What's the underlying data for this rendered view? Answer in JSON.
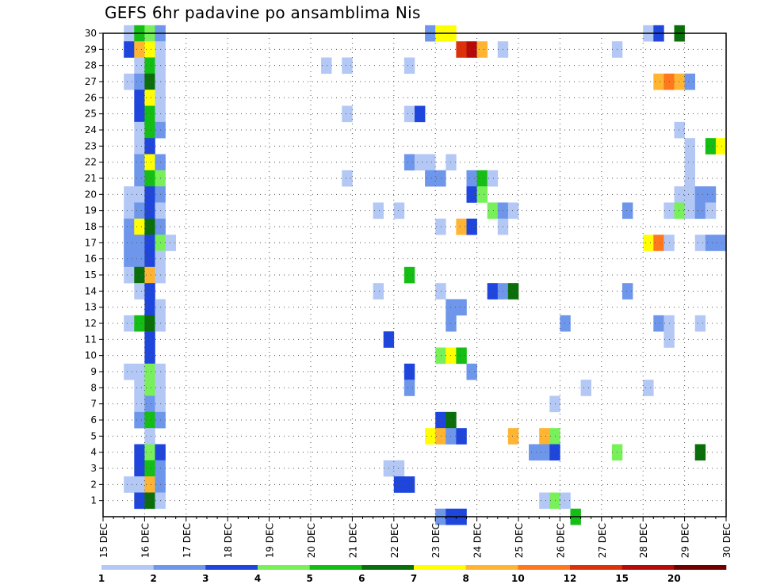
{
  "chart_data": {
    "type": "heatmap",
    "title": "GEFS 6hr padavine po ansamblima Nis",
    "xlabel": "",
    "ylabel": "",
    "x_ticks": [
      "15 DEC",
      "16 DEC",
      "17 DEC",
      "18 DEC",
      "19 DEC",
      "20 DEC",
      "21 DEC",
      "22 DEC",
      "23 DEC",
      "24 DEC",
      "25 DEC",
      "26 DEC",
      "27 DEC",
      "28 DEC",
      "29 DEC",
      "30 DEC"
    ],
    "y_ticks": [
      1,
      2,
      3,
      4,
      5,
      6,
      7,
      8,
      9,
      10,
      11,
      12,
      13,
      14,
      15,
      16,
      17,
      18,
      19,
      20,
      21,
      22,
      23,
      24,
      25,
      26,
      27,
      28,
      29,
      30
    ],
    "x_range": [
      "15 DEC",
      "30 DEC"
    ],
    "y_range": [
      0,
      30
    ],
    "time_step_hours": 6,
    "grid": true,
    "colorbar": {
      "placement": "bottom",
      "labels": [
        "1",
        "2",
        "3",
        "4",
        "5",
        "6",
        "7",
        "8",
        "10",
        "12",
        "15",
        "20"
      ],
      "colors": [
        "#b4c8f5",
        "#6e96eb",
        "#1e46dc",
        "#78f05a",
        "#14be14",
        "#0a6e0a",
        "#ffff00",
        "#ffb432",
        "#ff781e",
        "#dc320a",
        "#b40a0a",
        "#6e0000"
      ]
    },
    "cells": [
      {
        "day": 15.5,
        "member": 30,
        "level": 1
      },
      {
        "day": 15.75,
        "member": 30,
        "level": 5
      },
      {
        "day": 16,
        "member": 30,
        "level": 4
      },
      {
        "day": 16.25,
        "member": 30,
        "level": 2
      },
      {
        "day": 15.5,
        "member": 29,
        "level": 3
      },
      {
        "day": 15.75,
        "member": 29,
        "level": 8
      },
      {
        "day": 16,
        "member": 29,
        "level": 7
      },
      {
        "day": 16.25,
        "member": 29,
        "level": 1
      },
      {
        "day": 15.75,
        "member": 28,
        "level": 1
      },
      {
        "day": 16,
        "member": 28,
        "level": 5
      },
      {
        "day": 16.25,
        "member": 28,
        "level": 1
      },
      {
        "day": 15.5,
        "member": 27,
        "level": 1
      },
      {
        "day": 15.75,
        "member": 27,
        "level": 2
      },
      {
        "day": 16,
        "member": 27,
        "level": 6
      },
      {
        "day": 16.25,
        "member": 27,
        "level": 1
      },
      {
        "day": 15.75,
        "member": 26,
        "level": 3
      },
      {
        "day": 16,
        "member": 26,
        "level": 7
      },
      {
        "day": 16.25,
        "member": 26,
        "level": 1
      },
      {
        "day": 15.75,
        "member": 25,
        "level": 3
      },
      {
        "day": 16,
        "member": 25,
        "level": 5
      },
      {
        "day": 16.25,
        "member": 25,
        "level": 1
      },
      {
        "day": 15.75,
        "member": 24,
        "level": 1
      },
      {
        "day": 16,
        "member": 24,
        "level": 5
      },
      {
        "day": 16.25,
        "member": 24,
        "level": 2
      },
      {
        "day": 15.75,
        "member": 23,
        "level": 1
      },
      {
        "day": 16,
        "member": 23,
        "level": 3
      },
      {
        "day": 15.75,
        "member": 22,
        "level": 2
      },
      {
        "day": 16,
        "member": 22,
        "level": 7
      },
      {
        "day": 16.25,
        "member": 22,
        "level": 2
      },
      {
        "day": 15.75,
        "member": 21,
        "level": 2
      },
      {
        "day": 16,
        "member": 21,
        "level": 5
      },
      {
        "day": 16.25,
        "member": 21,
        "level": 4
      },
      {
        "day": 15.5,
        "member": 20,
        "level": 1
      },
      {
        "day": 15.75,
        "member": 20,
        "level": 1
      },
      {
        "day": 16,
        "member": 20,
        "level": 3
      },
      {
        "day": 16.25,
        "member": 20,
        "level": 2
      },
      {
        "day": 15.5,
        "member": 19,
        "level": 1
      },
      {
        "day": 15.75,
        "member": 19,
        "level": 2
      },
      {
        "day": 16,
        "member": 19,
        "level": 3
      },
      {
        "day": 16.25,
        "member": 19,
        "level": 1
      },
      {
        "day": 15.5,
        "member": 18,
        "level": 2
      },
      {
        "day": 15.75,
        "member": 18,
        "level": 7
      },
      {
        "day": 16,
        "member": 18,
        "level": 6
      },
      {
        "day": 16.25,
        "member": 18,
        "level": 2
      },
      {
        "day": 15.5,
        "member": 17,
        "level": 2
      },
      {
        "day": 15.75,
        "member": 17,
        "level": 2
      },
      {
        "day": 16,
        "member": 17,
        "level": 3
      },
      {
        "day": 16.25,
        "member": 17,
        "level": 4
      },
      {
        "day": 16.5,
        "member": 17,
        "level": 1
      },
      {
        "day": 15.5,
        "member": 16,
        "level": 2
      },
      {
        "day": 15.75,
        "member": 16,
        "level": 2
      },
      {
        "day": 16,
        "member": 16,
        "level": 3
      },
      {
        "day": 16.25,
        "member": 16,
        "level": 1
      },
      {
        "day": 15.5,
        "member": 15,
        "level": 1
      },
      {
        "day": 15.75,
        "member": 15,
        "level": 6
      },
      {
        "day": 16,
        "member": 15,
        "level": 8
      },
      {
        "day": 16.25,
        "member": 15,
        "level": 1
      },
      {
        "day": 15.75,
        "member": 14,
        "level": 1
      },
      {
        "day": 16,
        "member": 14,
        "level": 3
      },
      {
        "day": 16,
        "member": 13,
        "level": 3
      },
      {
        "day": 16.25,
        "member": 13,
        "level": 1
      },
      {
        "day": 15.5,
        "member": 12,
        "level": 1
      },
      {
        "day": 15.75,
        "member": 12,
        "level": 5
      },
      {
        "day": 16,
        "member": 12,
        "level": 6
      },
      {
        "day": 16.25,
        "member": 12,
        "level": 1
      },
      {
        "day": 16,
        "member": 11,
        "level": 3
      },
      {
        "day": 16,
        "member": 10,
        "level": 3
      },
      {
        "day": 15.5,
        "member": 9,
        "level": 1
      },
      {
        "day": 15.75,
        "member": 9,
        "level": 1
      },
      {
        "day": 16,
        "member": 9,
        "level": 4
      },
      {
        "day": 16.25,
        "member": 9,
        "level": 1
      },
      {
        "day": 15.75,
        "member": 8,
        "level": 1
      },
      {
        "day": 16,
        "member": 8,
        "level": 4
      },
      {
        "day": 16.25,
        "member": 8,
        "level": 1
      },
      {
        "day": 15.75,
        "member": 7,
        "level": 1
      },
      {
        "day": 16,
        "member": 7,
        "level": 2
      },
      {
        "day": 16.25,
        "member": 7,
        "level": 1
      },
      {
        "day": 15.75,
        "member": 6,
        "level": 2
      },
      {
        "day": 16,
        "member": 6,
        "level": 5
      },
      {
        "day": 16.25,
        "member": 6,
        "level": 2
      },
      {
        "day": 16,
        "member": 5,
        "level": 1
      },
      {
        "day": 15.75,
        "member": 4,
        "level": 3
      },
      {
        "day": 16,
        "member": 4,
        "level": 4
      },
      {
        "day": 16.25,
        "member": 4,
        "level": 3
      },
      {
        "day": 15.75,
        "member": 3,
        "level": 3
      },
      {
        "day": 16,
        "member": 3,
        "level": 5
      },
      {
        "day": 16.25,
        "member": 3,
        "level": 2
      },
      {
        "day": 15.5,
        "member": 2,
        "level": 1
      },
      {
        "day": 15.75,
        "member": 2,
        "level": 1
      },
      {
        "day": 16,
        "member": 2,
        "level": 8
      },
      {
        "day": 16.25,
        "member": 2,
        "level": 2
      },
      {
        "day": 15.75,
        "member": 1,
        "level": 3
      },
      {
        "day": 16,
        "member": 1,
        "level": 6
      },
      {
        "day": 16.25,
        "member": 1,
        "level": 1
      },
      {
        "day": 20.25,
        "member": 28,
        "level": 1
      },
      {
        "day": 20.75,
        "member": 28,
        "level": 1
      },
      {
        "day": 20.75,
        "member": 25,
        "level": 1
      },
      {
        "day": 20.75,
        "member": 21,
        "level": 1
      },
      {
        "day": 21.5,
        "member": 19,
        "level": 1
      },
      {
        "day": 21.5,
        "member": 14,
        "level": 1
      },
      {
        "day": 22,
        "member": 19,
        "level": 1
      },
      {
        "day": 21.75,
        "member": 11,
        "level": 3
      },
      {
        "day": 21.75,
        "member": 3,
        "level": 1
      },
      {
        "day": 22,
        "member": 3,
        "level": 1
      },
      {
        "day": 22,
        "member": 2,
        "level": 3
      },
      {
        "day": 22.25,
        "member": 2,
        "level": 3
      },
      {
        "day": 22.25,
        "member": 28,
        "level": 1
      },
      {
        "day": 22.25,
        "member": 25,
        "level": 1
      },
      {
        "day": 22.5,
        "member": 25,
        "level": 3
      },
      {
        "day": 22.25,
        "member": 22,
        "level": 2
      },
      {
        "day": 22.5,
        "member": 22,
        "level": 1
      },
      {
        "day": 22.75,
        "member": 22,
        "level": 1
      },
      {
        "day": 23.25,
        "member": 22,
        "level": 1
      },
      {
        "day": 22.75,
        "member": 21,
        "level": 2
      },
      {
        "day": 23,
        "member": 21,
        "level": 2
      },
      {
        "day": 22.25,
        "member": 15,
        "level": 5
      },
      {
        "day": 22.25,
        "member": 9,
        "level": 3
      },
      {
        "day": 22.25,
        "member": 8,
        "level": 2
      },
      {
        "day": 22.75,
        "member": 30,
        "level": 2
      },
      {
        "day": 23,
        "member": 30,
        "level": 7
      },
      {
        "day": 23.25,
        "member": 30,
        "level": 7
      },
      {
        "day": 23.5,
        "member": 29,
        "level": 10
      },
      {
        "day": 23.75,
        "member": 29,
        "level": 11
      },
      {
        "day": 24,
        "member": 29,
        "level": 8
      },
      {
        "day": 24.5,
        "member": 29,
        "level": 1
      },
      {
        "day": 23,
        "member": 18,
        "level": 1
      },
      {
        "day": 23.5,
        "member": 18,
        "level": 8
      },
      {
        "day": 23.75,
        "member": 18,
        "level": 3
      },
      {
        "day": 23,
        "member": 14,
        "level": 1
      },
      {
        "day": 23.25,
        "member": 13,
        "level": 2
      },
      {
        "day": 23.5,
        "member": 13,
        "level": 2
      },
      {
        "day": 23.25,
        "member": 12,
        "level": 2
      },
      {
        "day": 23,
        "member": 10,
        "level": 4
      },
      {
        "day": 23.25,
        "member": 10,
        "level": 7
      },
      {
        "day": 23.5,
        "member": 10,
        "level": 5
      },
      {
        "day": 23,
        "member": 6,
        "level": 3
      },
      {
        "day": 23.25,
        "member": 6,
        "level": 6
      },
      {
        "day": 22.75,
        "member": 5,
        "level": 7
      },
      {
        "day": 23,
        "member": 5,
        "level": 8
      },
      {
        "day": 23.25,
        "member": 5,
        "level": 2
      },
      {
        "day": 23.5,
        "member": 5,
        "level": 3
      },
      {
        "day": 23,
        "member": 0,
        "level": 2
      },
      {
        "day": 23.25,
        "member": 0,
        "level": 3
      },
      {
        "day": 23.5,
        "member": 0,
        "level": 3
      },
      {
        "day": 23.75,
        "member": 21,
        "level": 2
      },
      {
        "day": 24,
        "member": 21,
        "level": 5
      },
      {
        "day": 24.25,
        "member": 21,
        "level": 1
      },
      {
        "day": 23.75,
        "member": 20,
        "level": 3
      },
      {
        "day": 24,
        "member": 20,
        "level": 4
      },
      {
        "day": 24.25,
        "member": 19,
        "level": 4
      },
      {
        "day": 24.5,
        "member": 19,
        "level": 2
      },
      {
        "day": 24.75,
        "member": 19,
        "level": 1
      },
      {
        "day": 24.5,
        "member": 18,
        "level": 1
      },
      {
        "day": 24.25,
        "member": 14,
        "level": 3
      },
      {
        "day": 24.5,
        "member": 14,
        "level": 2
      },
      {
        "day": 24.75,
        "member": 14,
        "level": 6
      },
      {
        "day": 23.75,
        "member": 9,
        "level": 2
      },
      {
        "day": 24.75,
        "member": 5,
        "level": 8
      },
      {
        "day": 25.5,
        "member": 5,
        "level": 8
      },
      {
        "day": 25.75,
        "member": 5,
        "level": 4
      },
      {
        "day": 25.25,
        "member": 4,
        "level": 2
      },
      {
        "day": 25.5,
        "member": 4,
        "level": 2
      },
      {
        "day": 25.75,
        "member": 4,
        "level": 3
      },
      {
        "day": 25.5,
        "member": 1,
        "level": 1
      },
      {
        "day": 25.75,
        "member": 1,
        "level": 4
      },
      {
        "day": 26,
        "member": 1,
        "level": 1
      },
      {
        "day": 26.25,
        "member": 0,
        "level": 5
      },
      {
        "day": 25.75,
        "member": 7,
        "level": 1
      },
      {
        "day": 26.5,
        "member": 8,
        "level": 1
      },
      {
        "day": 26,
        "member": 12,
        "level": 2
      },
      {
        "day": 27.25,
        "member": 29,
        "level": 1
      },
      {
        "day": 27.5,
        "member": 19,
        "level": 2
      },
      {
        "day": 27.5,
        "member": 14,
        "level": 2
      },
      {
        "day": 27.25,
        "member": 4,
        "level": 4
      },
      {
        "day": 28,
        "member": 30,
        "level": 1
      },
      {
        "day": 28.25,
        "member": 30,
        "level": 3
      },
      {
        "day": 28.75,
        "member": 30,
        "level": 6
      },
      {
        "day": 28.25,
        "member": 27,
        "level": 8
      },
      {
        "day": 28.5,
        "member": 27,
        "level": 9
      },
      {
        "day": 28.75,
        "member": 27,
        "level": 8
      },
      {
        "day": 29,
        "member": 27,
        "level": 2
      },
      {
        "day": 28.75,
        "member": 24,
        "level": 1
      },
      {
        "day": 29,
        "member": 23,
        "level": 1
      },
      {
        "day": 29.5,
        "member": 23,
        "level": 5
      },
      {
        "day": 29.75,
        "member": 23,
        "level": 7
      },
      {
        "day": 29,
        "member": 22,
        "level": 1
      },
      {
        "day": 29,
        "member": 21,
        "level": 1
      },
      {
        "day": 28.75,
        "member": 20,
        "level": 1
      },
      {
        "day": 29,
        "member": 20,
        "level": 1
      },
      {
        "day": 29.25,
        "member": 20,
        "level": 2
      },
      {
        "day": 29.5,
        "member": 20,
        "level": 2
      },
      {
        "day": 28.5,
        "member": 19,
        "level": 1
      },
      {
        "day": 28.75,
        "member": 19,
        "level": 4
      },
      {
        "day": 29,
        "member": 19,
        "level": 1
      },
      {
        "day": 29.25,
        "member": 19,
        "level": 2
      },
      {
        "day": 29.5,
        "member": 19,
        "level": 1
      },
      {
        "day": 28,
        "member": 17,
        "level": 7
      },
      {
        "day": 28.25,
        "member": 17,
        "level": 9
      },
      {
        "day": 28.5,
        "member": 17,
        "level": 1
      },
      {
        "day": 29.25,
        "member": 17,
        "level": 1
      },
      {
        "day": 29.5,
        "member": 17,
        "level": 2
      },
      {
        "day": 29.75,
        "member": 17,
        "level": 2
      },
      {
        "day": 28.25,
        "member": 12,
        "level": 2
      },
      {
        "day": 28.5,
        "member": 12,
        "level": 1
      },
      {
        "day": 29.25,
        "member": 12,
        "level": 1
      },
      {
        "day": 28.5,
        "member": 11,
        "level": 1
      },
      {
        "day": 28,
        "member": 8,
        "level": 1
      },
      {
        "day": 29.25,
        "member": 4,
        "level": 6
      }
    ]
  }
}
